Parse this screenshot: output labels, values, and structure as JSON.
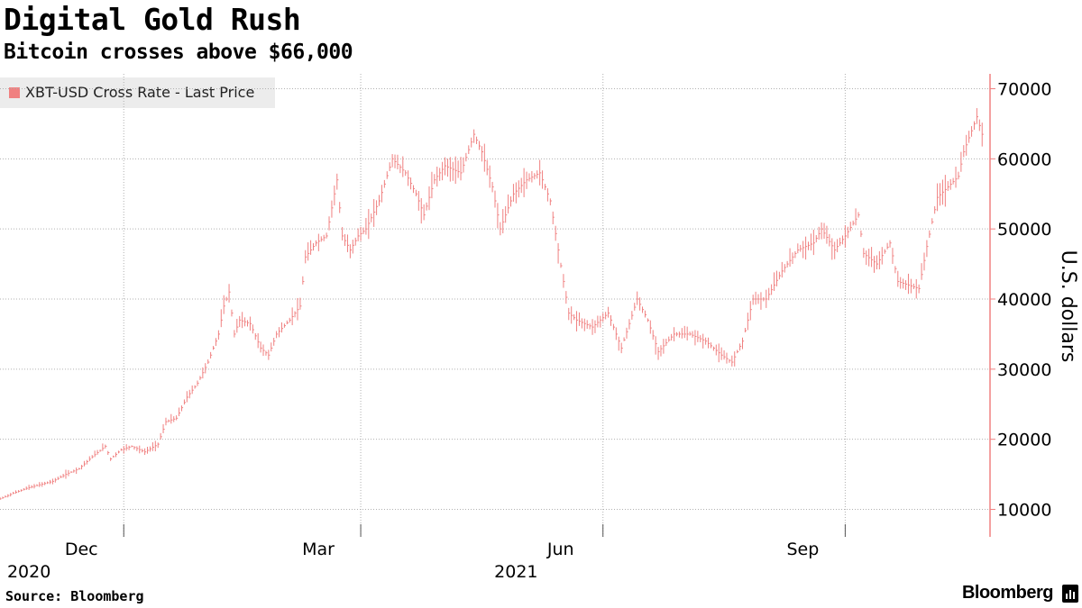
{
  "header": {
    "title": "Digital Gold Rush",
    "subtitle": "Bitcoin crosses above $66,000"
  },
  "footer": {
    "source": "Source: Bloomberg",
    "brand": "Bloomberg",
    "brand_icon": "bar-chart-icon"
  },
  "colors": {
    "series": "#f08080",
    "grid": "#b0b0b0",
    "legend_bg": "#ececec"
  },
  "chart_data": {
    "type": "line",
    "title": "Digital Gold Rush",
    "subtitle": "Bitcoin crosses above $66,000",
    "xlabel": "",
    "ylabel": "U.S. dollars",
    "ylim": [
      6000,
      72000
    ],
    "xlim": [
      "2020-10-15",
      "2021-10-26"
    ],
    "y_axis_position": "right",
    "y_ticks": [
      10000,
      20000,
      30000,
      40000,
      50000,
      60000,
      70000
    ],
    "x_ticks": [
      {
        "date": "2020-12-01",
        "label": "Dec"
      },
      {
        "date": "2021-03-01",
        "label": "Mar"
      },
      {
        "date": "2021-06-01",
        "label": "Jun"
      },
      {
        "date": "2021-09-01",
        "label": "Sep"
      }
    ],
    "year_labels": [
      {
        "date": "2020-10-26",
        "label": "2020"
      },
      {
        "date": "2021-04-29",
        "label": "2021"
      }
    ],
    "grid": true,
    "legend": "top-left",
    "series": [
      {
        "name": "XBT-USD Cross Rate - Last Price",
        "x": [
          "2020-10-15",
          "2020-10-20",
          "2020-10-25",
          "2020-10-30",
          "2020-11-04",
          "2020-11-09",
          "2020-11-14",
          "2020-11-19",
          "2020-11-24",
          "2020-11-26",
          "2020-11-30",
          "2020-12-04",
          "2020-12-09",
          "2020-12-14",
          "2020-12-17",
          "2020-12-21",
          "2020-12-25",
          "2020-12-29",
          "2021-01-02",
          "2021-01-06",
          "2021-01-08",
          "2021-01-10",
          "2021-01-12",
          "2021-01-14",
          "2021-01-18",
          "2021-01-22",
          "2021-01-25",
          "2021-01-28",
          "2021-02-02",
          "2021-02-06",
          "2021-02-08",
          "2021-02-12",
          "2021-02-16",
          "2021-02-20",
          "2021-02-22",
          "2021-02-25",
          "2021-02-28",
          "2021-03-03",
          "2021-03-08",
          "2021-03-13",
          "2021-03-18",
          "2021-03-22",
          "2021-03-25",
          "2021-03-29",
          "2021-04-02",
          "2021-04-08",
          "2021-04-13",
          "2021-04-16",
          "2021-04-20",
          "2021-04-23",
          "2021-04-28",
          "2021-05-03",
          "2021-05-08",
          "2021-05-12",
          "2021-05-15",
          "2021-05-19",
          "2021-05-22",
          "2021-05-28",
          "2021-06-03",
          "2021-06-08",
          "2021-06-14",
          "2021-06-18",
          "2021-06-22",
          "2021-06-28",
          "2021-07-04",
          "2021-07-10",
          "2021-07-16",
          "2021-07-20",
          "2021-07-24",
          "2021-07-28",
          "2021-08-02",
          "2021-08-08",
          "2021-08-14",
          "2021-08-20",
          "2021-08-23",
          "2021-08-28",
          "2021-09-01",
          "2021-09-06",
          "2021-09-08",
          "2021-09-13",
          "2021-09-18",
          "2021-09-21",
          "2021-09-25",
          "2021-09-29",
          "2021-10-02",
          "2021-10-06",
          "2021-10-10",
          "2021-10-14",
          "2021-10-16",
          "2021-10-19",
          "2021-10-21",
          "2021-10-23"
        ],
        "values": [
          11500,
          12300,
          13000,
          13500,
          14000,
          15000,
          15800,
          17500,
          19000,
          17200,
          18500,
          19000,
          18200,
          19300,
          22500,
          23000,
          26000,
          28000,
          31000,
          35000,
          39000,
          41000,
          35000,
          37000,
          36500,
          33000,
          32000,
          35000,
          37000,
          39000,
          46000,
          48000,
          49000,
          57000,
          49000,
          47000,
          49000,
          50000,
          54000,
          60000,
          58000,
          55000,
          52000,
          57000,
          59000,
          58000,
          63500,
          61000,
          56000,
          50000,
          55000,
          57000,
          58000,
          54000,
          47000,
          38000,
          37000,
          36000,
          38000,
          33000,
          40000,
          37000,
          32500,
          35000,
          35000,
          34000,
          32000,
          31000,
          34000,
          40000,
          40000,
          44000,
          47000,
          48000,
          50000,
          47000,
          49000,
          52000,
          46500,
          45000,
          48000,
          42500,
          42000,
          41500,
          47500,
          54500,
          56000,
          57500,
          61000,
          64000,
          66000,
          63500
        ]
      }
    ]
  }
}
